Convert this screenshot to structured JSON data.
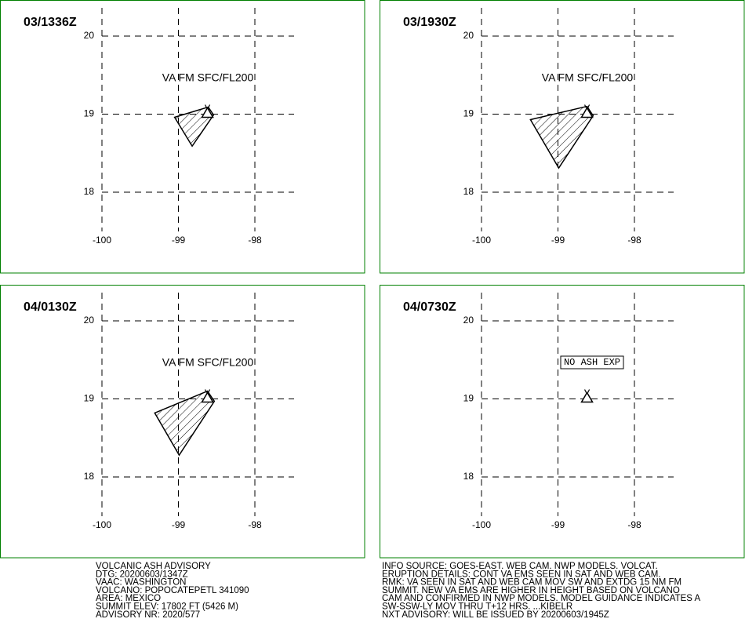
{
  "panels": [
    {
      "time": "03/1336Z",
      "label": "VA FM SFC/FL200",
      "polygon": [
        [
          -99.05,
          18.96
        ],
        [
          -98.61,
          19.09
        ],
        [
          -98.54,
          18.99
        ],
        [
          -98.82,
          18.59
        ]
      ]
    },
    {
      "time": "03/1930Z",
      "label": "VA FM SFC/FL200",
      "polygon": [
        [
          -99.36,
          18.93
        ],
        [
          -98.62,
          19.1
        ],
        [
          -98.54,
          18.98
        ],
        [
          -98.99,
          18.31
        ]
      ]
    },
    {
      "time": "04/0130Z",
      "label": "VA FM SFC/FL200",
      "polygon": [
        [
          -99.31,
          18.82
        ],
        [
          -98.62,
          19.1
        ],
        [
          -98.53,
          18.97
        ],
        [
          -98.99,
          18.28
        ]
      ]
    },
    {
      "time": "04/0730Z",
      "label": "NO ASH EXP"
    }
  ],
  "xlim": [
    -100,
    -98
  ],
  "ylim": [
    18,
    20
  ],
  "xticks": [
    -100,
    -99,
    -98
  ],
  "yticks": [
    18,
    19,
    20
  ],
  "volcano": [
    -98.62,
    19.02
  ],
  "advisory_left": [
    "VOLCANIC ASH ADVISORY",
    "DTG: 20200603/1347Z",
    "VAAC: WASHINGTON",
    "VOLCANO: POPOCATEPETL 341090",
    "AREA: MEXICO",
    "SUMMIT ELEV: 17802 FT (5426 M)",
    "ADVISORY NR: 2020/577"
  ],
  "advisory_right": [
    "INFO SOURCE: GOES-EAST. WEB CAM. NWP MODELS. VOLCAT.",
    "ERUPTION DETAILS: CONT VA EMS SEEN IN SAT AND WEB CAM.",
    "RMK: VA SEEN IN SAT AND WEB CAM MOV SW AND EXTDG 15 NM FM",
    "SUMMIT. NEW VA EMS ARE HIGHER IN HEIGHT BASED ON VOLCANO",
    "CAM AND CONFIRMED IN NWP MODELS. MODEL GUIDANCE INDICATES A",
    "SW-SSW-LY MOV THRU T+12 HRS. ...KIBELR",
    "NXT ADVISORY: WILL BE ISSUED BY 20200603/1945Z"
  ]
}
